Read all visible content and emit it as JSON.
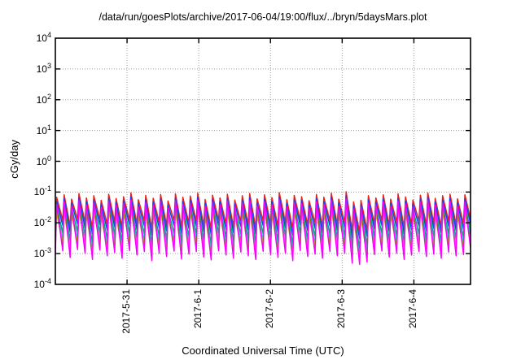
{
  "figure": {
    "title": "/data/run/goesPlots/archive/2017-06-04/19:00/flux/../bryn/5daysMars.plot",
    "xlabel": "Coordinated Universal Time (UTC)",
    "ylabel": "cGy/day"
  },
  "colors": {
    "border": "#000000",
    "grid": "#9a9a9a",
    "background": "#ffffff"
  },
  "chart_data": {
    "type": "line",
    "title": "/data/run/goesPlots/archive/2017-06-04/19:00/flux/../bryn/5daysMars.plot",
    "xlabel": "Coordinated Universal Time (UTC)",
    "ylabel": "cGy/day",
    "y_scale": "log10",
    "ylim": [
      0.0001,
      10000
    ],
    "y_tick_base": "10",
    "y_tick_exponents": [
      4,
      3,
      2,
      1,
      0,
      -1,
      -2,
      -3,
      -4
    ],
    "x_span_days": 5.79,
    "x_start": "2017-5-30 00:00",
    "x_end": "2017-6-4 19:00",
    "x_ticks": [
      {
        "day": 1,
        "label": "2017-5-31"
      },
      {
        "day": 2,
        "label": "2017-6-1"
      },
      {
        "day": 3,
        "label": "2017-6-2"
      },
      {
        "day": 4,
        "label": "2017-6-3"
      },
      {
        "day": 5,
        "label": "2017-6-4"
      }
    ],
    "grid": true,
    "legend": "none",
    "waveform": {
      "description": "quasi-periodic sawtooth dose-rate oscillation, ~9.7 cycles/day; values are log10(cGy/day); per-tooth [peak_offset, trough_offset] modulate each series",
      "period_days": 0.1035,
      "rise_fraction": 0.18,
      "teeth": [
        [
          0.0,
          -0.1
        ],
        [
          0.08,
          0.05
        ],
        [
          -0.06,
          -0.22
        ],
        [
          0.12,
          0.1
        ],
        [
          -0.02,
          -0.05
        ],
        [
          0.05,
          -0.3
        ],
        [
          -0.1,
          0.08
        ],
        [
          0.1,
          -0.15
        ],
        [
          -0.04,
          -0.02
        ],
        [
          0.02,
          -0.25
        ],
        [
          0.14,
          0.06
        ],
        [
          -0.08,
          -0.12
        ],
        [
          0.06,
          0.02
        ],
        [
          -0.03,
          -0.35
        ],
        [
          0.09,
          -0.05
        ],
        [
          -0.12,
          -0.18
        ],
        [
          0.11,
          0.04
        ],
        [
          0.0,
          -0.28
        ],
        [
          0.04,
          -0.08
        ],
        [
          0.13,
          0.02
        ],
        [
          -0.07,
          -0.2
        ],
        [
          0.07,
          -0.32
        ],
        [
          -0.02,
          0.05
        ],
        [
          0.1,
          -0.12
        ],
        [
          -0.09,
          -0.25
        ],
        [
          0.05,
          0.0
        ],
        [
          0.12,
          -0.15
        ],
        [
          -0.05,
          -0.3
        ],
        [
          0.08,
          0.03
        ],
        [
          -0.01,
          -0.1
        ],
        [
          0.15,
          -0.22
        ],
        [
          -0.08,
          -0.05
        ],
        [
          0.06,
          -0.35
        ],
        [
          0.02,
          0.06
        ],
        [
          -0.11,
          -0.18
        ],
        [
          0.09,
          -0.08
        ],
        [
          0.0,
          -0.25
        ],
        [
          0.13,
          0.02
        ],
        [
          -0.06,
          -0.15
        ],
        [
          0.18,
          -0.05
        ],
        [
          -0.15,
          -0.45
        ],
        [
          -0.1,
          -0.5
        ],
        [
          0.05,
          -0.4
        ],
        [
          -0.02,
          -0.1
        ],
        [
          0.08,
          0.04
        ],
        [
          -0.06,
          -0.2
        ],
        [
          0.11,
          -0.05
        ],
        [
          0.01,
          -0.3
        ],
        [
          -0.09,
          -0.12
        ],
        [
          0.07,
          0.02
        ],
        [
          0.14,
          -0.18
        ],
        [
          -0.03,
          -0.08
        ],
        [
          0.05,
          -0.25
        ],
        [
          0.1,
          0.0
        ],
        [
          -0.05,
          -0.15
        ],
        [
          0.08,
          -0.1
        ],
        [
          0.12,
          0.03
        ]
      ]
    },
    "series": [
      {
        "name": "red-trace",
        "color": "#ef2015",
        "peak_log": -1.17,
        "trough_log": -1.95,
        "peak_sens": 1.0,
        "trough_sens": 0.7
      },
      {
        "name": "blue-trace",
        "color": "#1c3ff2",
        "peak_log": -1.3,
        "trough_log": -2.12,
        "peak_sens": 1.0,
        "trough_sens": 0.8
      },
      {
        "name": "teal-trace",
        "color": "#00ab77",
        "peak_log": -1.45,
        "trough_log": -2.38,
        "peak_sens": 1.0,
        "trough_sens": 0.9
      },
      {
        "name": "cyan-trace",
        "color": "#17bde4",
        "peak_log": -1.6,
        "trough_log": -2.6,
        "peak_sens": 1.0,
        "trough_sens": 1.0
      },
      {
        "name": "yellow-trace",
        "color": "#ccab00",
        "peak_log": -1.68,
        "trough_log": -2.72,
        "peak_sens": 1.0,
        "trough_sens": 1.0
      },
      {
        "name": "magenta-trace",
        "color": "#fb00ff",
        "peak_log": -1.4,
        "trough_log": -2.95,
        "peak_sens": 1.0,
        "trough_sens": 0.8
      }
    ]
  }
}
